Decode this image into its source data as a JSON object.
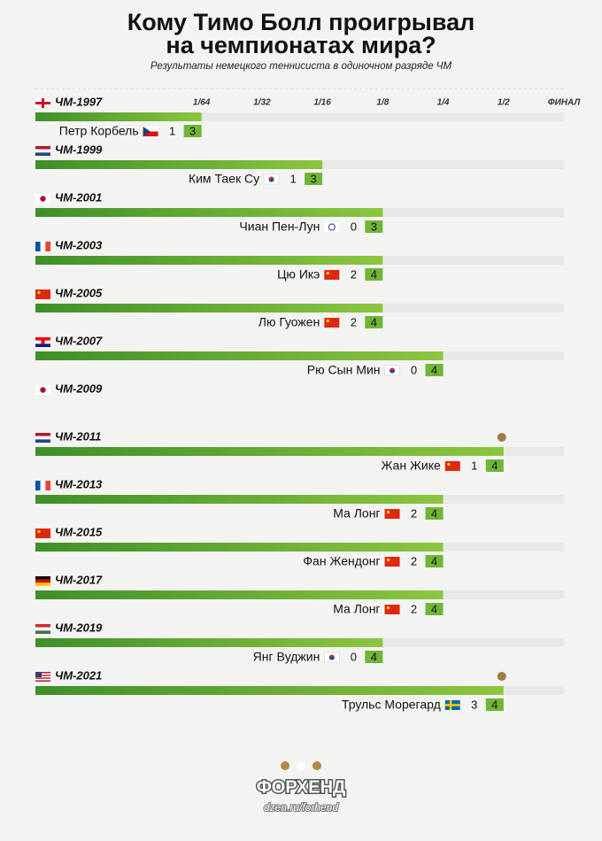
{
  "chart_data": {
    "type": "bar",
    "title": [
      "Кому Тимо Болл проигрывал",
      "на чемпионатах мира?"
    ],
    "subtitle": "Результаты немецкого теннисиста в одиночном разряде ЧМ",
    "xlim": [
      -1.75,
      7
    ],
    "xticks": [
      {
        "value": 1,
        "label": "1/64"
      },
      {
        "value": 2,
        "label": "1/32"
      },
      {
        "value": 3,
        "label": "1/16"
      },
      {
        "value": 4,
        "label": "1/8"
      },
      {
        "value": 5,
        "label": "1/4"
      },
      {
        "value": 6,
        "label": "1/2"
      },
      {
        "value": 7,
        "label": "ФИНАЛ"
      }
    ],
    "categories": [
      "ЧМ-1997",
      "ЧМ-1999",
      "ЧМ-2001",
      "ЧМ-2003",
      "ЧМ-2005",
      "ЧМ-2007",
      "ЧМ-2009",
      "ЧМ-2011",
      "ЧМ-2013",
      "ЧМ-2015",
      "ЧМ-2017",
      "ЧМ-2019",
      "ЧМ-2021"
    ],
    "values": [
      1,
      3,
      4,
      4,
      4,
      5,
      null,
      6,
      5,
      5,
      5,
      4,
      6
    ],
    "opponents": [
      "Петр Корбель",
      "Ким Таек Су",
      "Чиан Пен-Лун",
      "Цю Икэ",
      "Лю Гуожен",
      "Рю Сын Мин",
      null,
      "Жан Жике",
      "Ма Лонг",
      "Фан Жендонг",
      "Ма Лонг",
      "Янг Вуджин",
      "Трульс Морегард"
    ],
    "scores": [
      [
        1,
        3
      ],
      [
        1,
        3
      ],
      [
        0,
        3
      ],
      [
        2,
        4
      ],
      [
        2,
        4
      ],
      [
        0,
        4
      ],
      null,
      [
        1,
        4
      ],
      [
        2,
        4
      ],
      [
        2,
        4
      ],
      [
        2,
        4
      ],
      [
        0,
        4
      ],
      [
        3,
        4
      ]
    ],
    "color": "#6fb536"
  },
  "footer": {
    "brand": "ФОРХЕНД",
    "url": "dzen.ru/forhend"
  }
}
